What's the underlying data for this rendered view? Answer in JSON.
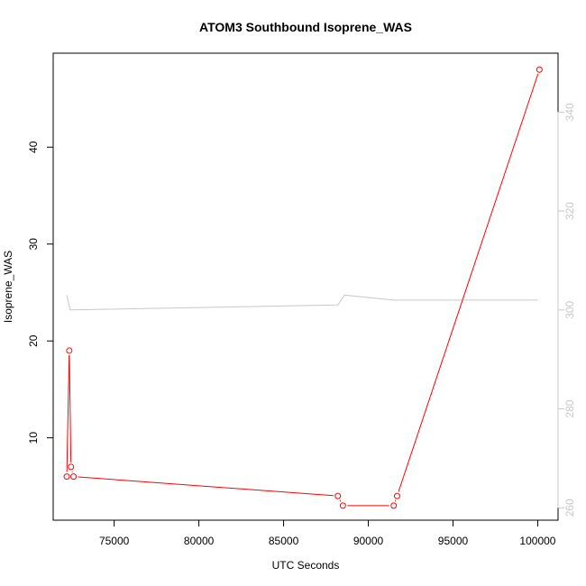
{
  "chart_data": {
    "type": "line",
    "title": "ATOM3 Southbound Isoprene_WAS",
    "xlabel": "UTC Seconds",
    "ylabel": "Isoprene_WAS",
    "xlim": [
      71400,
      101200
    ],
    "ylim": [
      1.5,
      49.7
    ],
    "xticks": [
      75000,
      80000,
      85000,
      90000,
      95000,
      100000
    ],
    "yticks": [
      10,
      20,
      30,
      40
    ],
    "y2lim": [
      257.5,
      351.9
    ],
    "y2ticks": [
      260,
      280,
      300,
      320,
      340
    ],
    "grid": false,
    "legend": "none",
    "colors": {
      "primary": "#ff0000",
      "secondary": "#c8c8c8",
      "axis": "#000000",
      "secondary_axis": "#c8c8c8"
    },
    "series": [
      {
        "axis": "left",
        "markers": true,
        "x": [
          72200,
          72350,
          72450,
          72600,
          88200,
          88500,
          91500,
          91700,
          100100
        ],
        "y": [
          6,
          19,
          7,
          6,
          4,
          3,
          3,
          4,
          48
        ]
      },
      {
        "axis": "right",
        "markers": false,
        "x": [
          72200,
          72400,
          88200,
          88600,
          91500,
          100000
        ],
        "y": [
          303,
          300,
          301,
          303,
          302,
          302
        ]
      }
    ]
  }
}
